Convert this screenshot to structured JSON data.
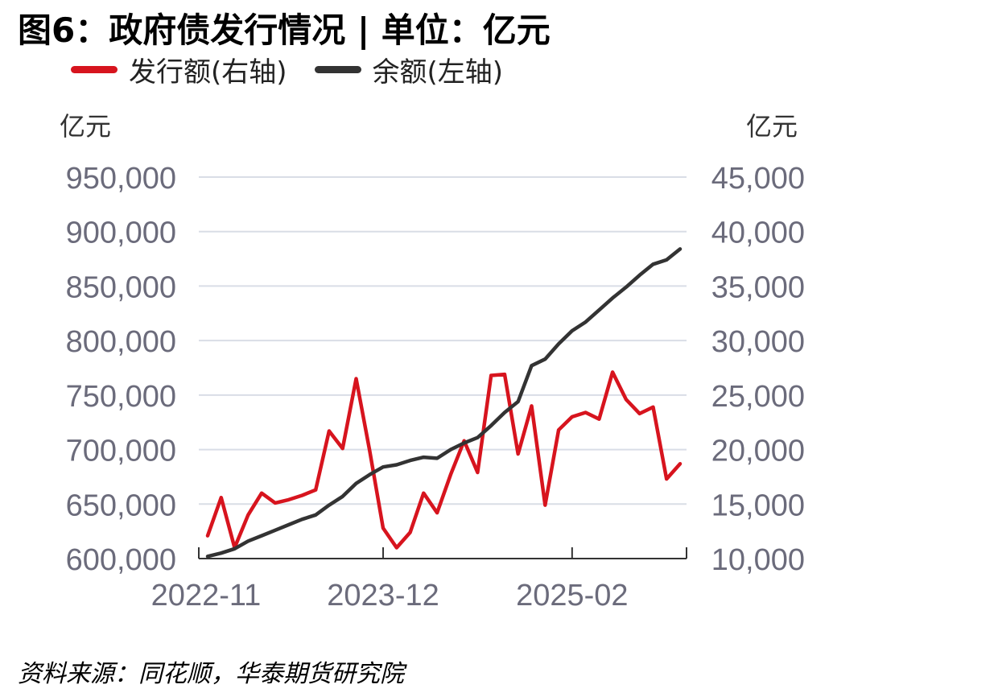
{
  "title": "图6：政府债发行情况 | 单位：亿元",
  "source": "资料来源：同花顺，华泰期货研究院",
  "colors": {
    "issuance": "#d7141e",
    "balance": "#333333",
    "grid": "#d9dde6",
    "axis": "#333333",
    "tick_text": "#6b6b7b"
  },
  "chart_data": {
    "type": "line",
    "legend": [
      {
        "label": "发行额(右轴)",
        "color": "#d7141e"
      },
      {
        "label": "余额(左轴)",
        "color": "#333333"
      }
    ],
    "left_unit": "亿元",
    "right_unit": "亿元",
    "y_left_lim": [
      600000,
      950000
    ],
    "y_right_lim": [
      10000,
      45000
    ],
    "y_left_ticks": [
      "950,000",
      "900,000",
      "850,000",
      "800,000",
      "750,000",
      "700,000",
      "650,000",
      "600,000"
    ],
    "y_right_ticks": [
      "45,000",
      "40,000",
      "35,000",
      "30,000",
      "25,000",
      "20,000",
      "15,000",
      "10,000"
    ],
    "x_tick_labels": [
      "2022-11",
      "2023-12",
      "2025-02"
    ],
    "x_tick_index": [
      0,
      13,
      27
    ],
    "x_axis_end_index": 36,
    "grid": true,
    "series": [
      {
        "name": "发行额(右轴)",
        "axis": "right",
        "values": [
          12100,
          15600,
          11000,
          14000,
          16000,
          15100,
          15400,
          15800,
          16300,
          21700,
          20100,
          26500,
          19900,
          12800,
          11000,
          12400,
          16000,
          14200,
          17700,
          20800,
          17900,
          26800,
          26900,
          19600,
          24000,
          14900,
          21800,
          23000,
          23400,
          22800,
          27100,
          24600,
          23300,
          23900,
          17300,
          18700
        ]
      },
      {
        "name": "余额(左轴)",
        "axis": "left",
        "values": [
          602000,
          605000,
          609000,
          616000,
          621000,
          626000,
          631000,
          636000,
          640000,
          649000,
          657000,
          669000,
          677000,
          684000,
          686000,
          690000,
          693000,
          692000,
          700000,
          706000,
          711000,
          722000,
          734000,
          744000,
          777000,
          783000,
          797000,
          809000,
          817000,
          828000,
          839000,
          849000,
          860000,
          870000,
          874000,
          884000
        ]
      }
    ]
  }
}
